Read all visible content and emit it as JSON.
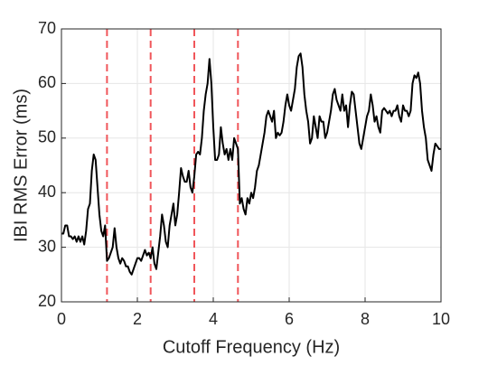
{
  "chart_data": {
    "type": "line",
    "xlabel": "Cutoff Frequency (Hz)",
    "ylabel": "IBI RMS Error (ms)",
    "x": [
      0,
      0.05,
      0.1,
      0.15,
      0.2,
      0.25,
      0.3,
      0.35,
      0.4,
      0.45,
      0.5,
      0.55,
      0.6,
      0.65,
      0.7,
      0.75,
      0.8,
      0.85,
      0.9,
      0.95,
      1,
      1.05,
      1.1,
      1.15,
      1.2,
      1.25,
      1.3,
      1.35,
      1.4,
      1.45,
      1.5,
      1.55,
      1.6,
      1.65,
      1.7,
      1.75,
      1.8,
      1.85,
      1.9,
      1.95,
      2,
      2.05,
      2.1,
      2.15,
      2.2,
      2.25,
      2.3,
      2.35,
      2.4,
      2.45,
      2.5,
      2.55,
      2.6,
      2.65,
      2.7,
      2.75,
      2.8,
      2.85,
      2.9,
      2.95,
      3,
      3.05,
      3.1,
      3.15,
      3.2,
      3.25,
      3.3,
      3.35,
      3.4,
      3.45,
      3.5,
      3.55,
      3.6,
      3.65,
      3.7,
      3.75,
      3.8,
      3.85,
      3.9,
      3.95,
      4,
      4.05,
      4.1,
      4.15,
      4.2,
      4.25,
      4.3,
      4.35,
      4.4,
      4.45,
      4.5,
      4.55,
      4.6,
      4.65,
      4.7,
      4.75,
      4.8,
      4.85,
      4.9,
      4.95,
      5,
      5.05,
      5.1,
      5.15,
      5.2,
      5.25,
      5.3,
      5.35,
      5.4,
      5.45,
      5.5,
      5.55,
      5.6,
      5.65,
      5.7,
      5.75,
      5.8,
      5.85,
      5.9,
      5.95,
      6,
      6.05,
      6.1,
      6.15,
      6.2,
      6.25,
      6.3,
      6.35,
      6.4,
      6.45,
      6.5,
      6.55,
      6.6,
      6.65,
      6.7,
      6.75,
      6.8,
      6.85,
      6.9,
      6.95,
      7,
      7.05,
      7.1,
      7.15,
      7.2,
      7.25,
      7.3,
      7.35,
      7.4,
      7.45,
      7.5,
      7.55,
      7.6,
      7.65,
      7.7,
      7.75,
      7.8,
      7.85,
      7.9,
      7.95,
      8,
      8.05,
      8.1,
      8.15,
      8.2,
      8.25,
      8.3,
      8.35,
      8.4,
      8.45,
      8.5,
      8.55,
      8.6,
      8.65,
      8.7,
      8.75,
      8.8,
      8.85,
      8.9,
      8.95,
      9,
      9.05,
      9.1,
      9.15,
      9.2,
      9.25,
      9.3,
      9.35,
      9.4,
      9.45,
      9.5,
      9.55,
      9.6,
      9.65,
      9.7,
      9.75,
      9.8,
      9.85,
      9.9,
      9.95,
      10
    ],
    "values": [
      32.5,
      32.5,
      34,
      34,
      32,
      32,
      31.5,
      32,
      31,
      32,
      31,
      32,
      30.5,
      33,
      37,
      38,
      44,
      47,
      46,
      41,
      36,
      33,
      32,
      34,
      27.5,
      28,
      29,
      30,
      33.5,
      30,
      28,
      27,
      28,
      27.5,
      26.5,
      26.5,
      25.5,
      25,
      26,
      27,
      28,
      28,
      27.5,
      28.5,
      29.5,
      28.5,
      29,
      28,
      30,
      27,
      26,
      29,
      32,
      36,
      34,
      31,
      30,
      34,
      36,
      38,
      34,
      36,
      40,
      44.5,
      43,
      42,
      42,
      44,
      41,
      40,
      43,
      47,
      47.5,
      47,
      50,
      55,
      58,
      60,
      64.5,
      60,
      52,
      46,
      46,
      47,
      52,
      49,
      47,
      48,
      46,
      48,
      46,
      50,
      49,
      48,
      38,
      39,
      37,
      36,
      39,
      38,
      40,
      39,
      41,
      44,
      45,
      47,
      49,
      51,
      54,
      55,
      54,
      53,
      55,
      50,
      51,
      50.5,
      51,
      53,
      56,
      58,
      56,
      55,
      57,
      59,
      63,
      65,
      65.5,
      63,
      58,
      55,
      53,
      49,
      50,
      54,
      52,
      50,
      54,
      53,
      53,
      50,
      51,
      53,
      55,
      58,
      59,
      57,
      56,
      55,
      58,
      55,
      56,
      52,
      56,
      58.5,
      58,
      55,
      52,
      49,
      48,
      50,
      52,
      54,
      55,
      58,
      56,
      53,
      54,
      52,
      51,
      55,
      55.5,
      55,
      54.5,
      55,
      54,
      55,
      55,
      56,
      54,
      53,
      56,
      55,
      55,
      54,
      55,
      60,
      61.5,
      61,
      62,
      60,
      55,
      52,
      50,
      46,
      45,
      44,
      47,
      49,
      48.5,
      48,
      48
    ],
    "color": "#000000",
    "vlines": [
      1.2,
      2.35,
      3.5,
      4.65
    ],
    "vline_color": "#f0565a",
    "xlim": [
      0,
      10
    ],
    "xticks": [
      0,
      2,
      4,
      6,
      8,
      10
    ],
    "ylim": [
      20,
      70
    ],
    "yticks": [
      20,
      30,
      40,
      50,
      60,
      70
    ],
    "grid": true
  }
}
